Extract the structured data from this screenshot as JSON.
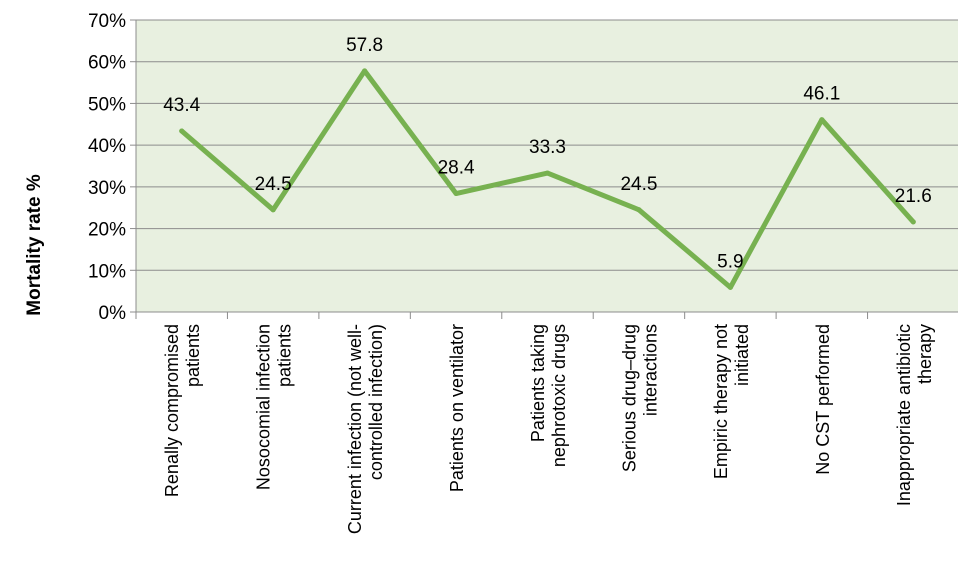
{
  "chart_data": {
    "type": "line",
    "title": "",
    "xlabel": "",
    "ylabel": "Mortality rate %",
    "ylim": [
      0,
      70
    ],
    "yticks": [
      "0%",
      "10%",
      "20%",
      "30%",
      "40%",
      "50%",
      "60%",
      "70%"
    ],
    "grid": true,
    "legend": "none",
    "categories": [
      [
        "Renally compromised",
        "patients"
      ],
      [
        "Nosocomial infection",
        "patients"
      ],
      [
        "Current infection (not well-",
        "controlled infection)"
      ],
      [
        "Patients on ventilator"
      ],
      [
        "Patients taking",
        "nephrotoxic drugs"
      ],
      [
        "Serious drug–drug",
        "interactions"
      ],
      [
        "Empiric therapy not",
        "initiated"
      ],
      [
        "No CST performed"
      ],
      [
        "Inappropriate antibiotic",
        "therapy"
      ]
    ],
    "series": [
      {
        "values": [
          43.4,
          24.5,
          57.8,
          28.4,
          33.3,
          24.5,
          5.9,
          46.1,
          21.6
        ],
        "labels": [
          "43.4",
          "24.5",
          "57.8",
          "28.4",
          "33.3",
          "24.5",
          "5.9",
          "46.1",
          "21.6"
        ],
        "color": "#77b150"
      }
    ],
    "plot_background": "#e8f0e0",
    "grid_color": "#8c8c8c"
  }
}
